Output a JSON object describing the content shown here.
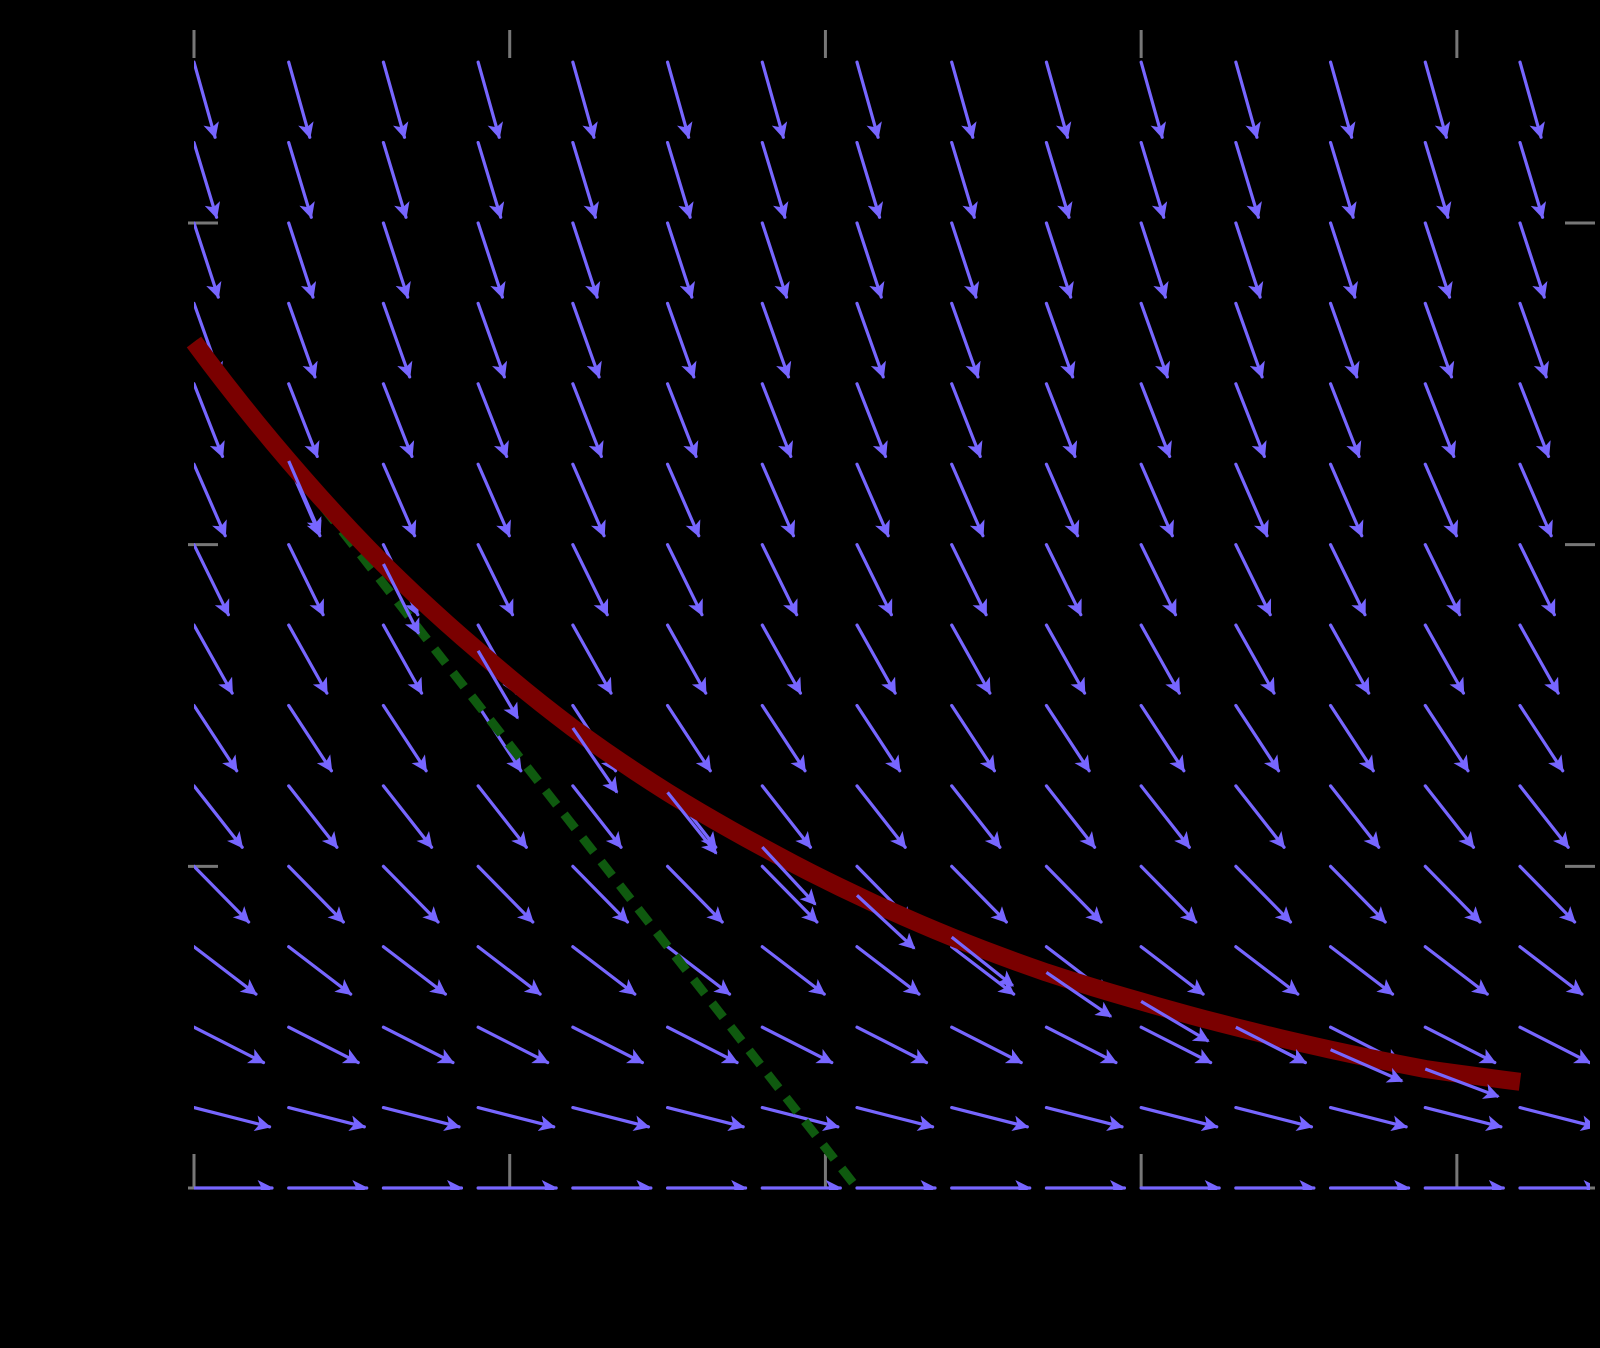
{
  "chart_data": {
    "type": "line",
    "title": "",
    "xlabel": "",
    "ylabel": "",
    "xlim": [
      0,
      4.2
    ],
    "ylim": [
      0,
      3.6
    ],
    "grid": false,
    "legend": "none",
    "colors": {
      "background": "#000000",
      "slope_field": "#7766ff",
      "solution_curve": "#7a0000",
      "tangent_line": "#0f5a0f",
      "axes": "#000000",
      "ticks": "#777777"
    },
    "slope_field": {
      "equation": "dy/dx = -y",
      "x_samples": [
        0.0,
        0.3,
        0.6,
        0.9,
        1.2,
        1.5,
        1.8,
        2.1,
        2.4,
        2.7,
        3.0,
        3.3,
        3.6,
        3.9,
        4.2
      ],
      "y_samples": [
        0.0,
        0.25,
        0.5,
        0.75,
        1.0,
        1.25,
        1.5,
        1.75,
        2.0,
        2.25,
        2.5,
        2.75,
        3.0,
        3.25,
        3.5
      ]
    },
    "series": [
      {
        "kind": "solution",
        "x": [
          0.0,
          0.3,
          0.6,
          0.9,
          1.2,
          1.5,
          1.8,
          2.1,
          2.4,
          2.7,
          3.0,
          3.3,
          3.6,
          3.9,
          4.2
        ],
        "y": [
          2.63,
          2.26,
          1.94,
          1.67,
          1.43,
          1.23,
          1.06,
          0.91,
          0.78,
          0.67,
          0.58,
          0.5,
          0.43,
          0.37,
          0.33
        ]
      },
      {
        "kind": "tangent",
        "style": "dashed",
        "x": [
          0.0,
          2.1
        ],
        "y": [
          2.63,
          0.0
        ]
      }
    ],
    "x_ticks": [
      0,
      1,
      2,
      3,
      4
    ],
    "y_ticks": [
      0,
      1,
      2,
      3
    ]
  }
}
